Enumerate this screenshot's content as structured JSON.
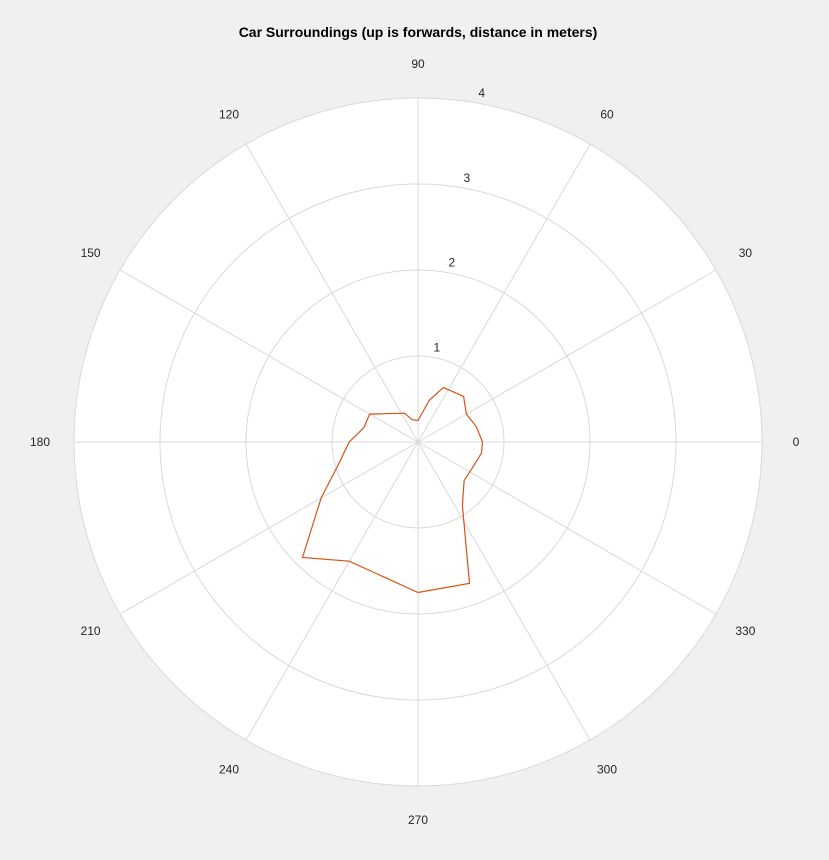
{
  "chart_data": {
    "type": "polar-line",
    "title": "Car Surroundings (up is forwards, distance in meters)",
    "angle_unit": "degrees",
    "theta_ticks": [
      0,
      30,
      60,
      90,
      120,
      150,
      180,
      210,
      240,
      270,
      300,
      330
    ],
    "r_ticks": [
      1,
      2,
      3,
      4
    ],
    "rlim": [
      0,
      4
    ],
    "grid": true,
    "series": [
      {
        "color": "#d95319",
        "points": [
          {
            "theta": 0,
            "r": 0.75
          },
          {
            "theta": 15,
            "r": 0.7
          },
          {
            "theta": 30,
            "r": 0.65
          },
          {
            "theta": 45,
            "r": 0.75
          },
          {
            "theta": 65,
            "r": 0.7
          },
          {
            "theta": 75,
            "r": 0.5
          },
          {
            "theta": 90,
            "r": 0.25
          },
          {
            "theta": 105,
            "r": 0.27
          },
          {
            "theta": 115,
            "r": 0.37
          },
          {
            "theta": 150,
            "r": 0.65
          },
          {
            "theta": 165,
            "r": 0.65
          },
          {
            "theta": 180,
            "r": 0.8
          },
          {
            "theta": 195,
            "r": 0.95
          },
          {
            "theta": 210,
            "r": 1.3
          },
          {
            "theta": 225,
            "r": 1.9
          },
          {
            "theta": 240,
            "r": 1.6
          },
          {
            "theta": 270,
            "r": 1.75
          },
          {
            "theta": 290,
            "r": 1.75
          },
          {
            "theta": 305,
            "r": 0.9
          },
          {
            "theta": 320,
            "r": 0.7
          },
          {
            "theta": 335,
            "r": 0.7
          },
          {
            "theta": 350,
            "r": 0.75
          },
          {
            "theta": 360,
            "r": 0.75
          }
        ]
      }
    ]
  }
}
